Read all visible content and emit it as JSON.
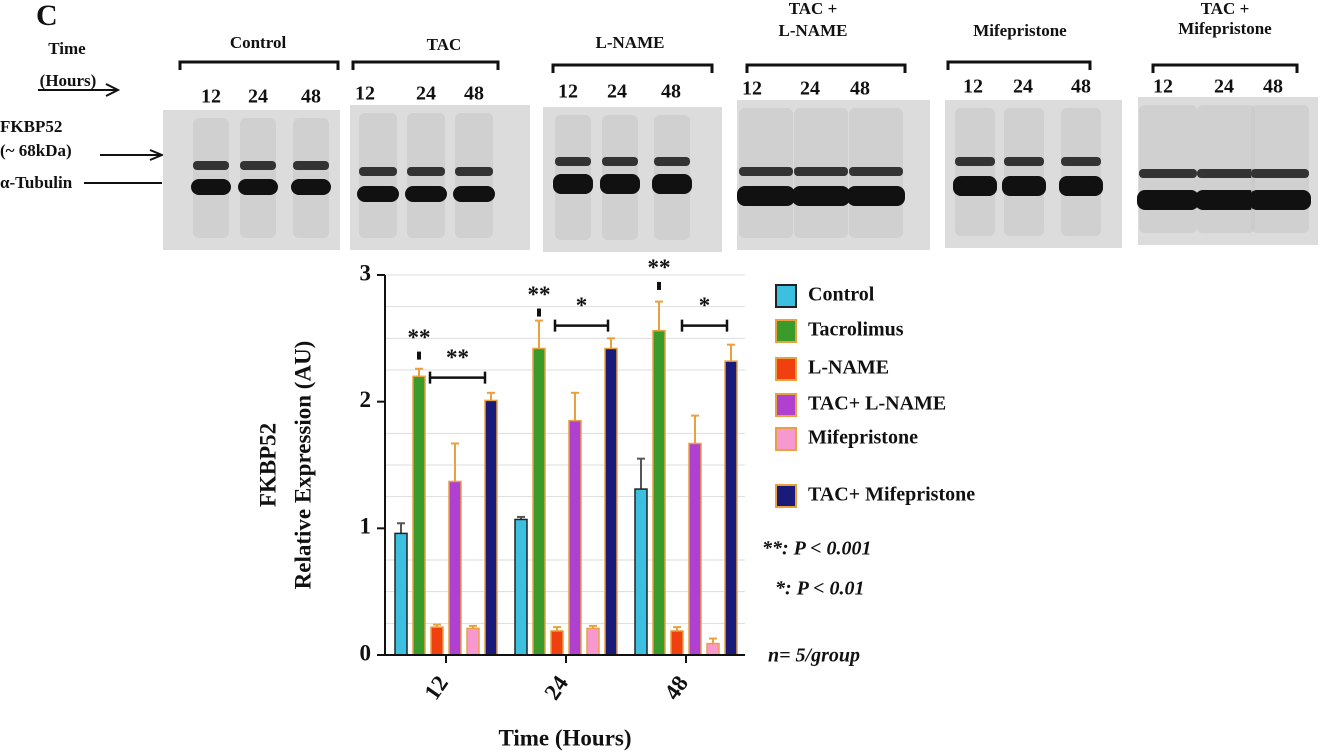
{
  "panel_label": "C",
  "blot": {
    "time_label": [
      "Time",
      "(Hours)"
    ],
    "row_labels": [
      "FKBP52",
      "(~ 68kDa)",
      "α-Tubulin"
    ],
    "groups": [
      {
        "name": [
          "Control"
        ],
        "lanes": [
          "12",
          "24",
          "48"
        ]
      },
      {
        "name": [
          "TAC"
        ],
        "lanes": [
          "12",
          "24",
          "48"
        ]
      },
      {
        "name": [
          "L-NAME"
        ],
        "lanes": [
          "12",
          "24",
          "48"
        ]
      },
      {
        "name": [
          "TAC +",
          "L-NAME"
        ],
        "lanes": [
          "12",
          "24",
          "48"
        ]
      },
      {
        "name": [
          "Mifepristone"
        ],
        "lanes": [
          "12",
          "24",
          "48"
        ]
      },
      {
        "name": [
          "TAC +",
          "Mifepristone"
        ],
        "lanes": [
          "12",
          "24",
          "48"
        ]
      }
    ]
  },
  "chart_data": {
    "type": "bar",
    "x_label": "Time (Hours)",
    "y_label": [
      "FKBP52",
      "Relative Expression (AU)"
    ],
    "categories": [
      "12",
      "24",
      "48"
    ],
    "ylim": [
      0,
      3
    ],
    "yticks": [
      0,
      1,
      2,
      3
    ],
    "minor_yticks": [
      0.25,
      0.5,
      0.75,
      1.25,
      1.5,
      1.75,
      2.25,
      2.5,
      2.75,
      3
    ],
    "series": [
      {
        "name": "Control",
        "color": "#3cc0e0",
        "edgecolor": "#222",
        "values": [
          0.96,
          1.07,
          1.31
        ],
        "errors": [
          0.08,
          0.02,
          0.24
        ]
      },
      {
        "name": "Tacrolimus",
        "color": "#3a9a2a",
        "edgecolor": "#e8a040",
        "values": [
          2.2,
          2.42,
          2.56
        ],
        "errors": [
          0.06,
          0.22,
          0.23
        ]
      },
      {
        "name": "L-NAME",
        "color": "#f04010",
        "edgecolor": "#e8a040",
        "values": [
          0.22,
          0.19,
          0.19
        ],
        "errors": [
          0.02,
          0.03,
          0.03
        ]
      },
      {
        "name": "TAC+ L-NAME",
        "color": "#b040d0",
        "edgecolor": "#e8a040",
        "values": [
          1.37,
          1.85,
          1.67
        ],
        "errors": [
          0.3,
          0.22,
          0.22
        ]
      },
      {
        "name": "Mifepristone",
        "color": "#f898d0",
        "edgecolor": "#e8a040",
        "values": [
          0.21,
          0.21,
          0.09
        ],
        "errors": [
          0.02,
          0.02,
          0.04
        ]
      },
      {
        "name": "TAC+ Mifepristone",
        "color": "#1a1a78",
        "edgecolor": "#e8a040",
        "values": [
          2.01,
          2.42,
          2.32
        ],
        "errors": [
          0.06,
          0.08,
          0.13
        ]
      }
    ],
    "markers": [
      {
        "text": "**",
        "y": 2.49
      },
      {
        "text": "**",
        "y": 2.83
      },
      {
        "text": "**",
        "y": 3.04
      }
    ],
    "brackets": [
      {
        "text": "**",
        "y": 2.19
      },
      {
        "text": "*",
        "y": 2.6
      },
      {
        "text": "*",
        "y": 2.6
      }
    ],
    "notes": [
      "**: P < 0.001",
      "*: P < 0.01",
      "n= 5/group"
    ]
  }
}
